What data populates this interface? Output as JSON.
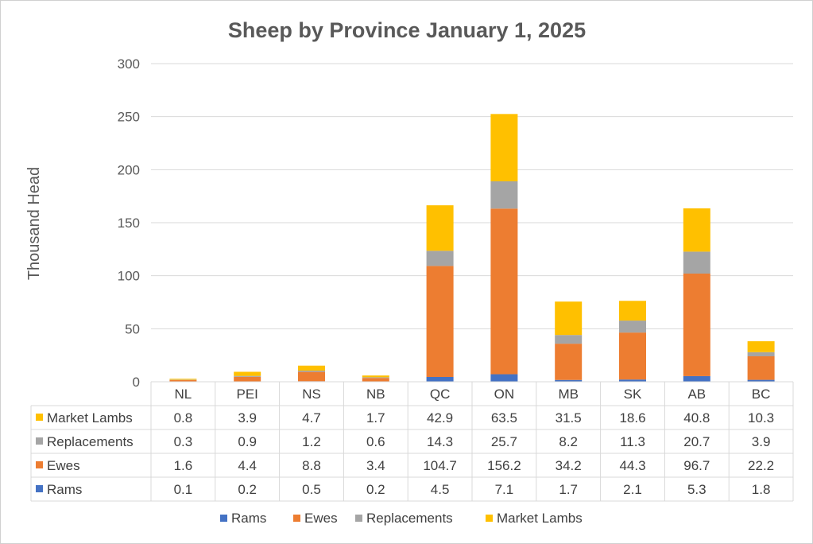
{
  "chart_data": {
    "type": "bar",
    "stacked": true,
    "title": "Sheep by Province January 1, 2025",
    "ylabel": "Thousand Head",
    "xlabel": "",
    "ylim": [
      0,
      300
    ],
    "yticks": [
      0,
      50,
      100,
      150,
      200,
      250,
      300
    ],
    "grid": true,
    "legend_position": "bottom",
    "data_table": true,
    "categories": [
      "NL",
      "PEI",
      "NS",
      "NB",
      "QC",
      "ON",
      "MB",
      "SK",
      "AB",
      "BC"
    ],
    "series": [
      {
        "name": "Rams",
        "color": "#4472C4",
        "values": [
          0.1,
          0.2,
          0.5,
          0.2,
          4.5,
          7.1,
          1.7,
          2.1,
          5.3,
          1.8
        ]
      },
      {
        "name": "Ewes",
        "color": "#ED7D31",
        "values": [
          1.6,
          4.4,
          8.8,
          3.4,
          104.7,
          156.2,
          34.2,
          44.3,
          96.7,
          22.2
        ]
      },
      {
        "name": "Replacements",
        "color": "#A5A5A5",
        "values": [
          0.3,
          0.9,
          1.2,
          0.6,
          14.3,
          25.7,
          8.2,
          11.3,
          20.7,
          3.9
        ]
      },
      {
        "name": "Market Lambs",
        "color": "#FFC000",
        "values": [
          0.8,
          3.9,
          4.7,
          1.7,
          42.9,
          63.5,
          31.5,
          18.6,
          40.8,
          10.3
        ]
      }
    ],
    "table_rows": [
      {
        "series": "Market Lambs",
        "cells": [
          "0.8",
          "3.9",
          "4.7",
          "1.7",
          "42.9",
          "63.5",
          "31.5",
          "18.6",
          "40.8",
          "10.3"
        ]
      },
      {
        "series": "Replacements",
        "cells": [
          "0.3",
          "0.9",
          "1.2",
          "0.6",
          "14.3",
          "25.7",
          "8.2",
          "11.3",
          "20.7",
          "3.9"
        ]
      },
      {
        "series": "Ewes",
        "cells": [
          "1.6",
          "4.4",
          "8.8",
          "3.4",
          "104.7",
          "156.2",
          "34.2",
          "44.3",
          "96.7",
          "22.2"
        ]
      },
      {
        "series": "Rams",
        "cells": [
          "0.1",
          "0.2",
          "0.5",
          "0.2",
          "4.5",
          "7.1",
          "1.7",
          "2.1",
          "5.3",
          "1.8"
        ]
      }
    ]
  },
  "colors": {
    "grid": "#d9d9d9",
    "text": "#595959",
    "table_border": "#d9d9d9"
  }
}
